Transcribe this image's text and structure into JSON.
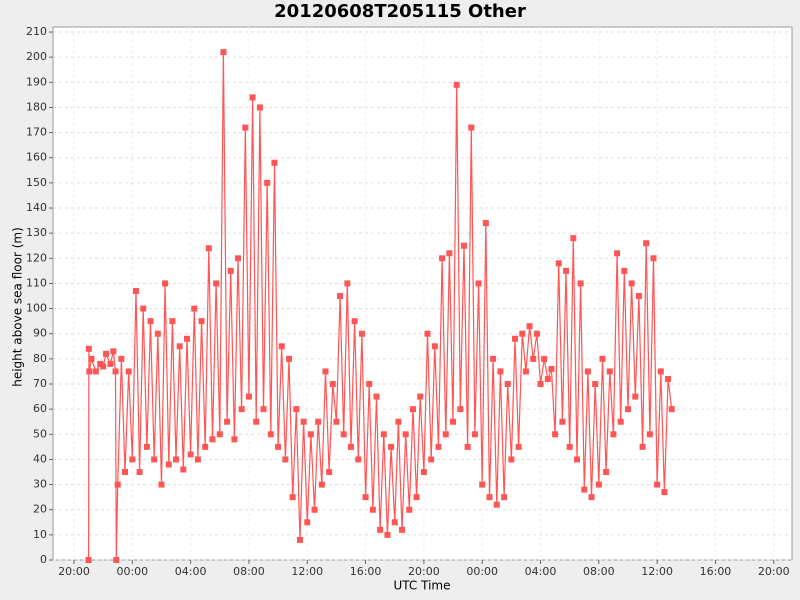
{
  "chart_data": {
    "type": "line",
    "title": "20120608T205115 Other",
    "x_label": "UTC Time",
    "y_label": "height above sea floor (m)",
    "xlim": [
      18.56,
      69.25
    ],
    "ylim": [
      0,
      212
    ],
    "xticks": [
      {
        "value": 20,
        "label": "20:00"
      },
      {
        "value": 24,
        "label": "00:00"
      },
      {
        "value": 28,
        "label": "04:00"
      },
      {
        "value": 32,
        "label": "08:00"
      },
      {
        "value": 36,
        "label": "12:00"
      },
      {
        "value": 40,
        "label": "16:00"
      },
      {
        "value": 44,
        "label": "20:00"
      },
      {
        "value": 48,
        "label": "00:00"
      },
      {
        "value": 52,
        "label": "04:00"
      },
      {
        "value": 56,
        "label": "08:00"
      },
      {
        "value": 60,
        "label": "12:00"
      },
      {
        "value": 64,
        "label": "16:00"
      },
      {
        "value": 68,
        "label": "20:00"
      }
    ],
    "yticks": [
      0,
      10,
      20,
      30,
      40,
      50,
      60,
      70,
      80,
      90,
      100,
      110,
      120,
      130,
      140,
      150,
      160,
      170,
      180,
      190,
      200,
      210
    ],
    "grid": true,
    "x": [
      21.0,
      21.02,
      21.05,
      21.2,
      21.5,
      21.8,
      22.0,
      22.2,
      22.5,
      22.7,
      22.85,
      22.9,
      23,
      23.25,
      23.5,
      23.75,
      24,
      24.25,
      24.5,
      24.75,
      25,
      25.25,
      25.5,
      25.75,
      26,
      26.25,
      26.5,
      26.75,
      27,
      27.25,
      27.5,
      27.75,
      28,
      28.25,
      28.5,
      28.75,
      29,
      29.25,
      29.5,
      29.75,
      30,
      30.25,
      30.5,
      30.75,
      31,
      31.25,
      31.5,
      31.75,
      32,
      32.25,
      32.5,
      32.75,
      33,
      33.25,
      33.5,
      33.75,
      34,
      34.25,
      34.5,
      34.75,
      35,
      35.25,
      35.5,
      35.75,
      36,
      36.25,
      36.5,
      36.75,
      37,
      37.25,
      37.5,
      37.75,
      38,
      38.25,
      38.5,
      38.75,
      39,
      39.25,
      39.5,
      39.75,
      40,
      40.25,
      40.5,
      40.75,
      41,
      41.25,
      41.5,
      41.75,
      42,
      42.25,
      42.5,
      42.75,
      43,
      43.25,
      43.5,
      43.75,
      44,
      44.25,
      44.5,
      44.75,
      45,
      45.25,
      45.5,
      45.75,
      46,
      46.25,
      46.5,
      46.75,
      47,
      47.25,
      47.5,
      47.75,
      48,
      48.25,
      48.5,
      48.75,
      49,
      49.25,
      49.5,
      49.75,
      50,
      50.25,
      50.5,
      50.75,
      51,
      51.25,
      51.5,
      51.75,
      52,
      52.25,
      52.5,
      52.75,
      53,
      53.25,
      53.5,
      53.75,
      54,
      54.25,
      54.5,
      54.75,
      55,
      55.25,
      55.5,
      55.75,
      56,
      56.25,
      56.5,
      56.75,
      57,
      57.25,
      57.5,
      57.75,
      58,
      58.25,
      58.5,
      58.75,
      59,
      59.25,
      59.5,
      59.75,
      60,
      60.25,
      60.5,
      60.75,
      61
    ],
    "series": [
      {
        "color": "#ff5555",
        "values": [
          0,
          84,
          75,
          80,
          75,
          78,
          77,
          82,
          78,
          83,
          75,
          0,
          30,
          80,
          35,
          75,
          40,
          107,
          35,
          100,
          45,
          95,
          40,
          90,
          30,
          110,
          38,
          95,
          40,
          85,
          36,
          88,
          42,
          100,
          40,
          95,
          45,
          124,
          48,
          110,
          50,
          202,
          55,
          115,
          48,
          120,
          60,
          172,
          65,
          184,
          55,
          180,
          60,
          150,
          50,
          158,
          45,
          85,
          40,
          80,
          25,
          60,
          8,
          55,
          15,
          50,
          20,
          55,
          30,
          75,
          35,
          70,
          55,
          105,
          50,
          110,
          45,
          95,
          40,
          90,
          25,
          70,
          20,
          65,
          12,
          50,
          10,
          45,
          15,
          55,
          12,
          50,
          20,
          60,
          25,
          65,
          35,
          90,
          40,
          85,
          45,
          120,
          50,
          122,
          55,
          189,
          60,
          125,
          45,
          172,
          50,
          110,
          30,
          134,
          25,
          80,
          22,
          75,
          25,
          70,
          40,
          88,
          45,
          90,
          75,
          93,
          80,
          90,
          70,
          80,
          72,
          76,
          50,
          118,
          55,
          115,
          45,
          128,
          40,
          110,
          28,
          75,
          25,
          70,
          30,
          80,
          35,
          75,
          50,
          122,
          55,
          115,
          60,
          110,
          65,
          105,
          45,
          126,
          50,
          120,
          30,
          75,
          27,
          72,
          60
        ]
      }
    ]
  }
}
